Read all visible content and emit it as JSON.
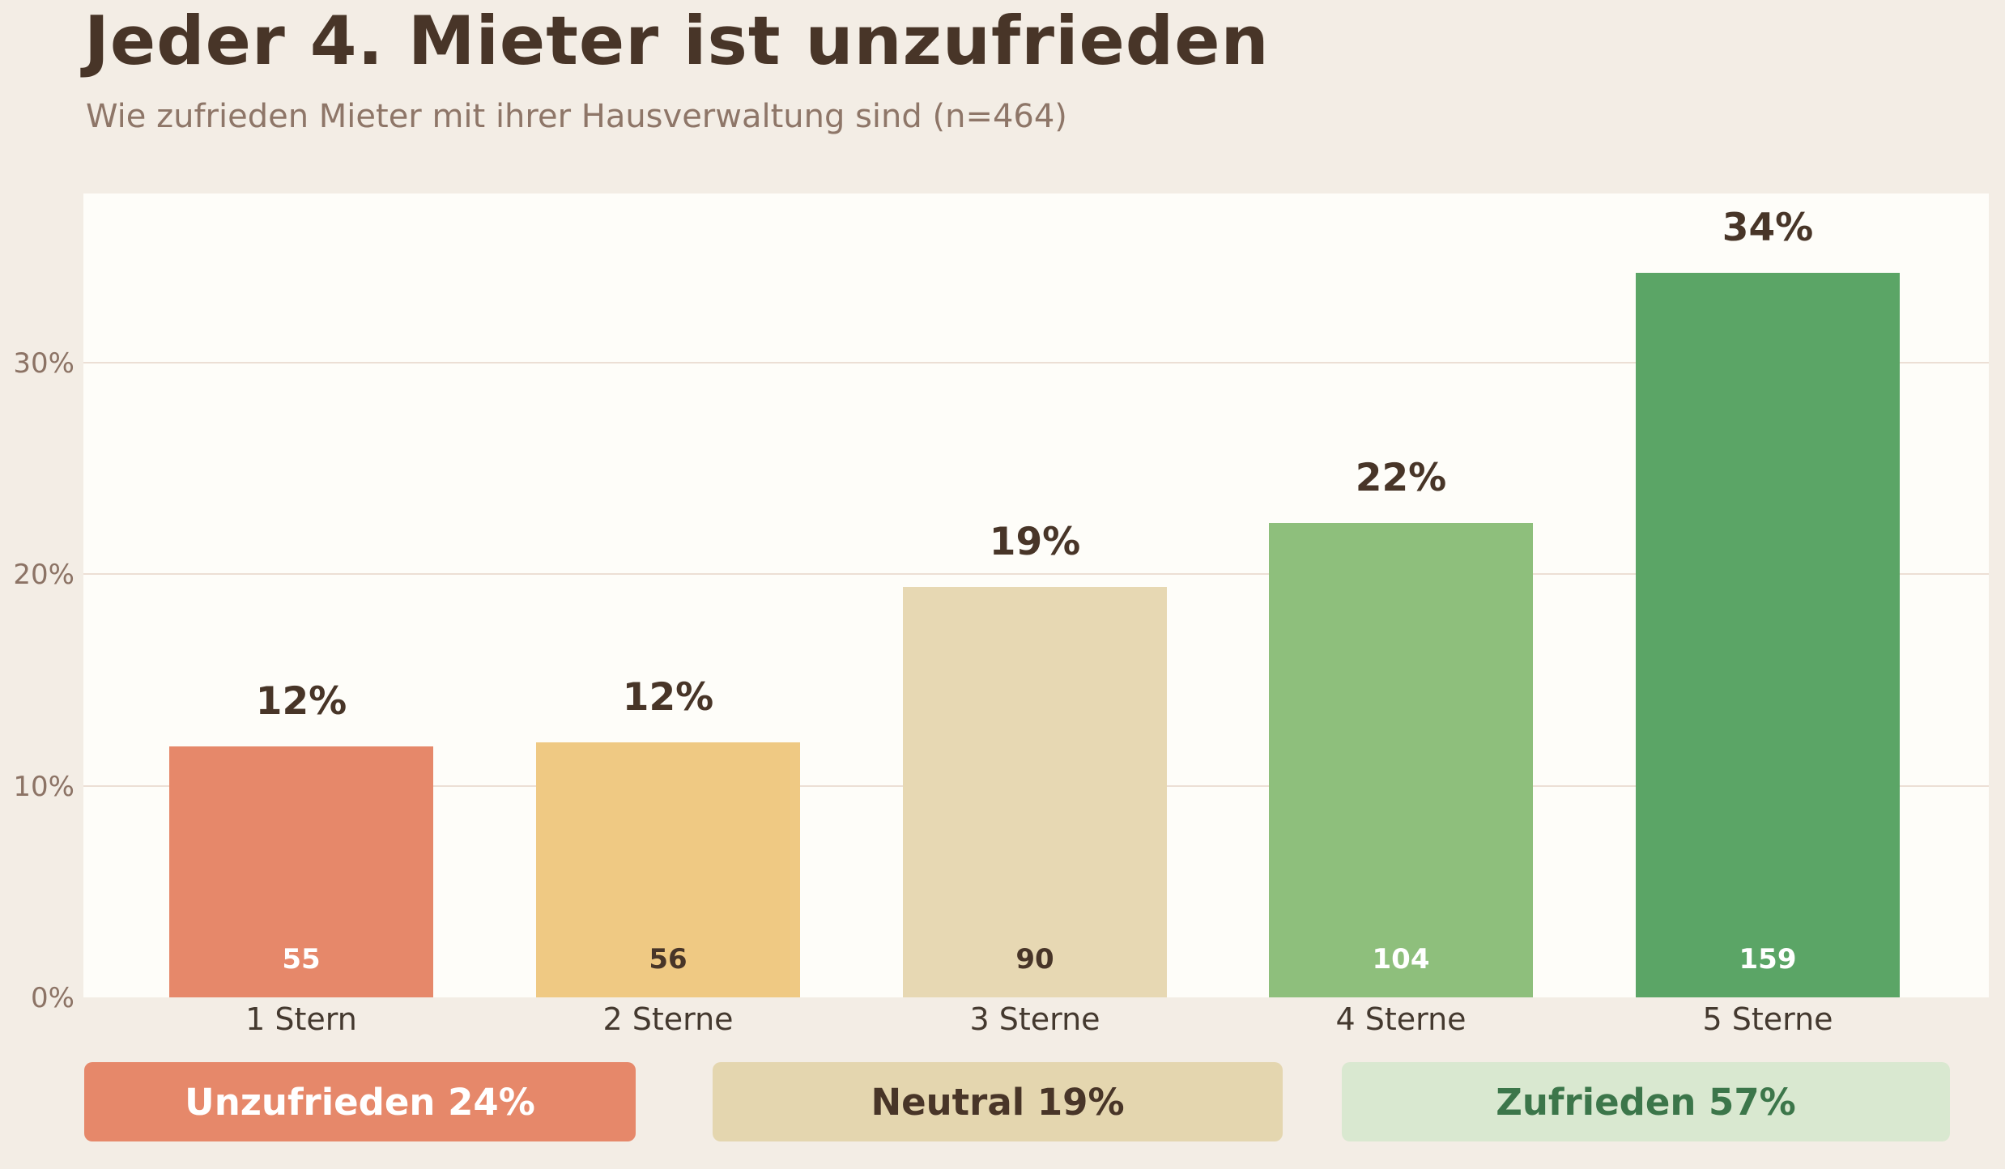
{
  "header": {
    "title": "Jeder 4. Mieter ist unzufrieden",
    "subtitle": "Wie zufrieden Mieter mit ihrer Hausverwaltung sind (n=464)"
  },
  "chart_data": {
    "type": "bar",
    "title": "Jeder 4. Mieter ist unzufrieden",
    "subtitle": "Wie zufrieden Mieter mit ihrer Hausverwaltung sind (n=464)",
    "n_total": 464,
    "categories": [
      "1 Stern",
      "2 Sterne",
      "3 Sterne",
      "4 Sterne",
      "5 Sterne"
    ],
    "values_pct": [
      12,
      12,
      19,
      22,
      34
    ],
    "pct_labels": [
      "12%",
      "12%",
      "19%",
      "22%",
      "34%"
    ],
    "counts": [
      55,
      56,
      90,
      104,
      159
    ],
    "bar_colors": [
      "#e6886a",
      "#efc983",
      "#e7d8b3",
      "#8ebf7c",
      "#5ba566"
    ],
    "count_label_colors": [
      "#ffffff",
      "#483528",
      "#483528",
      "#ffffff",
      "#ffffff"
    ],
    "yticks_pct": [
      0,
      10,
      20,
      30
    ],
    "ytick_labels": [
      "0%",
      "10%",
      "20%",
      "30%"
    ],
    "ylim": [
      0,
      38
    ],
    "grid": true,
    "grid_color": "#ecdfd5",
    "plot_background": "#fefdf9",
    "page_background": "#f3ede5",
    "legend_position": "bottom"
  },
  "legend": {
    "badges": [
      {
        "label": "Unzufrieden 24%",
        "bg": "#e6886a",
        "color": "#ffffff"
      },
      {
        "label": "Neutral 19%",
        "bg": "#e4d6af",
        "color": "#483528"
      },
      {
        "label": "Zufrieden 57%",
        "bg": "#d9e8d0",
        "color": "#3c764a"
      }
    ]
  }
}
